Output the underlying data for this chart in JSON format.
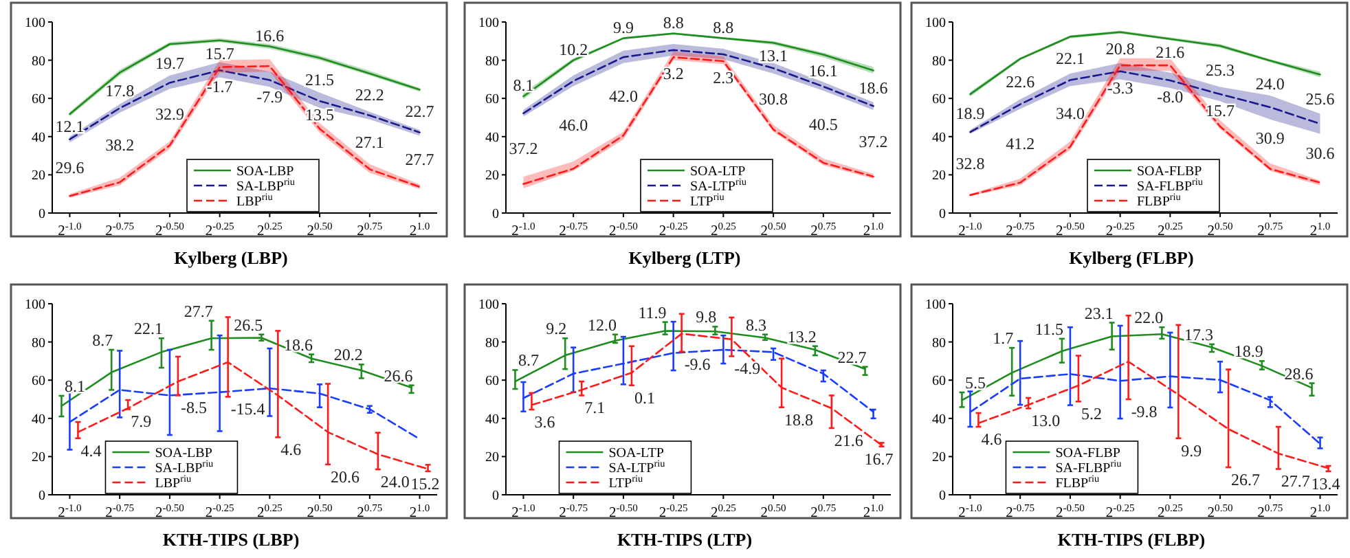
{
  "chart_data": [
    {
      "type": "line",
      "title": "Kylberg (LBP)",
      "categories": [
        "2$^{-1.0}$",
        "2$^{-0.75}$",
        "2$^{-0.50}$",
        "2$^{-0.25}$",
        "2$^{0.25}$",
        "2$^{0.50}$",
        "2$^{0.75}$",
        "2$^{1.0}$"
      ],
      "ylim": [
        0,
        100
      ],
      "yticks": [
        0,
        20,
        40,
        60,
        80,
        100
      ],
      "legend": "bottom",
      "series": [
        {
          "name": "SOA-LBP",
          "color": "#1e8c1e",
          "line_style": "solid",
          "values": [
            51.8,
            73.5,
            88.4,
            90.4,
            87.2,
            81.2,
            73,
            64.6
          ],
          "lower": [
            50.5,
            72,
            87.5,
            89.5,
            86,
            80,
            72,
            63.5
          ],
          "upper": [
            53,
            75,
            89.5,
            91.5,
            88.5,
            82.5,
            74.5,
            65.5
          ]
        },
        {
          "name": "SA-LBP$^{riu}$",
          "color": "#1a1a8c",
          "line_style": "dashed",
          "values": [
            38.6,
            54.9,
            68.2,
            74.7,
            69.6,
            58.6,
            51.1,
            42.2
          ],
          "lower": [
            37,
            52.5,
            65,
            71,
            66,
            55,
            49,
            40.5
          ],
          "upper": [
            40,
            57,
            72,
            79,
            74,
            63,
            53,
            43.5
          ]
        },
        {
          "name": "LBP$^{riu}$",
          "color": "#ff1a1a",
          "line_style": "dashed",
          "values": [
            8.9,
            16.1,
            35.4,
            76.4,
            76.9,
            44.1,
            22.9,
            13.7
          ],
          "lower": [
            8,
            14.5,
            33.5,
            73.5,
            74,
            42,
            21,
            12.5
          ],
          "upper": [
            10,
            18.5,
            37.5,
            80,
            80.5,
            47,
            25.5,
            15
          ]
        }
      ],
      "annotations": [
        "12.1",
        "29.6",
        "17.8",
        "38.2",
        "19.7",
        "32.9",
        "15.7",
        "-1.7",
        "16.6",
        "-7.9",
        "21.5",
        "13.5",
        "22.2",
        "27.1",
        "22.7",
        "27.7"
      ]
    },
    {
      "type": "line",
      "title": "Kylberg (LTP)",
      "categories": [
        "2$^{-1.0}$",
        "2$^{-0.75}$",
        "2$^{-0.50}$",
        "2$^{-0.25}$",
        "2$^{0.25}$",
        "2$^{0.50}$",
        "2$^{0.75}$",
        "2$^{1.0}$"
      ],
      "ylim": [
        0,
        100
      ],
      "yticks": [
        0,
        20,
        40,
        60,
        80,
        100
      ],
      "legend": "bottom",
      "series": [
        {
          "name": "SOA-LTP",
          "color": "#1e8c1e",
          "line_style": "solid",
          "values": [
            61.1,
            80,
            91.5,
            94,
            91.5,
            89.1,
            82.9,
            74.6
          ],
          "lower": [
            59.5,
            79,
            91,
            93.5,
            91,
            88,
            81.5,
            73
          ],
          "upper": [
            63,
            81,
            92,
            94.5,
            92,
            90,
            84,
            76.5
          ]
        },
        {
          "name": "SA-LTP$^{riu}$",
          "color": "#1a1a8c",
          "line_style": "dashed",
          "values": [
            52.2,
            69.1,
            81.6,
            85.3,
            83.1,
            75.8,
            66.2,
            56
          ],
          "lower": [
            50.5,
            66.5,
            78.5,
            82.5,
            80.5,
            73,
            64,
            54
          ],
          "upper": [
            54,
            72,
            85,
            88.5,
            86,
            78.5,
            68.5,
            58
          ]
        },
        {
          "name": "LTP$^{riu}$",
          "color": "#ff1a1a",
          "line_style": "dashed",
          "values": [
            15.2,
            23.2,
            40.6,
            81.6,
            79.5,
            43.7,
            26.3,
            19.1
          ],
          "lower": [
            13,
            22,
            38.5,
            80,
            78,
            42.5,
            25,
            18
          ],
          "upper": [
            19,
            27,
            42.5,
            84.5,
            82,
            46,
            28.5,
            20.5
          ]
        }
      ],
      "annotations": [
        "8.1",
        "37.2",
        "10.2",
        "46.0",
        "9.9",
        "42.0",
        "8.8",
        "3.2",
        "8.8",
        "2.3",
        "13.1",
        "30.8",
        "16.1",
        "40.5",
        "18.6",
        "37.2"
      ]
    },
    {
      "type": "line",
      "title": "Kylberg (FLBP)",
      "categories": [
        "2$^{-1.0}$",
        "2$^{-0.75}$",
        "2$^{-0.50}$",
        "2$^{-0.25}$",
        "2$^{0.25}$",
        "2$^{0.50}$",
        "2$^{0.75}$",
        "2$^{1.0}$"
      ],
      "ylim": [
        0,
        100
      ],
      "yticks": [
        0,
        20,
        40,
        60,
        80,
        100
      ],
      "legend": "bottom",
      "series": [
        {
          "name": "SOA-FLBP",
          "color": "#1e8c1e",
          "line_style": "solid",
          "values": [
            62.2,
            80.7,
            92.3,
            94.7,
            91.1,
            87.5,
            79.8,
            72.5
          ],
          "lower": [
            61,
            80,
            91.5,
            94,
            90.5,
            86.5,
            79,
            71
          ],
          "upper": [
            63.5,
            81.5,
            93,
            95.5,
            92,
            88.5,
            80.5,
            74
          ]
        },
        {
          "name": "SA-FLBP$^{riu}$",
          "color": "#1a1a8c",
          "line_style": "dashed",
          "values": [
            42.4,
            56.9,
            69.6,
            74.2,
            69.4,
            62.2,
            55.4,
            46.7
          ],
          "lower": [
            41.5,
            54.5,
            66.5,
            70,
            65.5,
            58.5,
            49,
            41.5
          ],
          "upper": [
            43.5,
            59.5,
            73,
            78.5,
            73.5,
            66,
            61.5,
            52
          ]
        },
        {
          "name": "FLBP$^{riu}$",
          "color": "#ff1a1a",
          "line_style": "dashed",
          "values": [
            9.4,
            15.9,
            34.7,
            77.3,
            77.3,
            45.3,
            23.1,
            15.9
          ],
          "lower": [
            9,
            14.5,
            33,
            74.5,
            74.5,
            44,
            22,
            14.5
          ],
          "upper": [
            10,
            18,
            37.5,
            81,
            81,
            48.5,
            26,
            17
          ]
        }
      ],
      "annotations": [
        "18.9",
        "32.8",
        "22.6",
        "41.2",
        "22.1",
        "34.0",
        "20.8",
        "-3.3",
        "21.6",
        "-8.0",
        "25.3",
        "15.7",
        "24.0",
        "30.9",
        "25.6",
        "30.6"
      ]
    },
    {
      "type": "line",
      "title": "KTH-TIPS (LBP)",
      "categories": [
        "2$^{-1.0}$",
        "2$^{-0.75}$",
        "2$^{-0.50}$",
        "2$^{-0.25}$",
        "2$^{0.25}$",
        "2$^{0.50}$",
        "2$^{0.75}$",
        "2$^{1.0}$"
      ],
      "ylim": [
        0,
        100
      ],
      "yticks": [
        0,
        20,
        40,
        60,
        80,
        100
      ],
      "legend": "bottom left",
      "series": [
        {
          "name": "SOA-LBP",
          "color": "#1e8c1e",
          "line_style": "solid",
          "values": [
            46.5,
            64.1,
            74.7,
            81.9,
            82.2,
            71.3,
            65.1,
            56.1
          ],
          "errors": [
            [
              41,
              51.8
            ],
            [
              54.9,
              75.9
            ],
            [
              66.5,
              81.9
            ],
            [
              75.9,
              91.1
            ],
            [
              80.7,
              83.9
            ],
            [
              69.4,
              73.5
            ],
            [
              61,
              68.2
            ],
            [
              53.3,
              57.3
            ]
          ]
        },
        {
          "name": "SA-LBP$^{riu}$",
          "color": "#1a3cff",
          "line_style": "dashed",
          "values": [
            38.1,
            54.9,
            52,
            53.7,
            55.7,
            53,
            44.8,
            29.2
          ],
          "errors": [
            [
              23.6,
              53.7
            ],
            [
              40.5,
              75.4
            ],
            [
              31.3,
              75.9
            ],
            [
              33.3,
              83.4
            ],
            [
              41.2,
              76.6
            ],
            [
              45.8,
              57.8
            ],
            [
              42.9,
              46.5
            ],
            null
          ]
        },
        {
          "name": "LBP$^{riu}$",
          "color": "#ff1a1a",
          "line_style": "dashed",
          "values": [
            32.8,
            45.3,
            59.3,
            69.4,
            52,
            32.8,
            21.2,
            13.5
          ],
          "errors": [
            [
              29.6,
              38.1
            ],
            [
              44.8,
              49.6
            ],
            [
              52,
              72.3
            ],
            [
              51.3,
              93
            ],
            [
              30.1,
              85.8
            ],
            [
              15.9,
              58.1
            ],
            [
              13.3,
              32.5
            ],
            [
              12.3,
              15.7
            ]
          ]
        }
      ],
      "annotations": [
        "8.1",
        "4.4",
        "8.7",
        "7.9",
        "22.1",
        "-8.5",
        "27.7",
        "-15.4",
        "26.5",
        "4.6",
        "18.6",
        "20.6",
        "20.2",
        "24.0",
        "26.6",
        "15.2"
      ]
    },
    {
      "type": "line",
      "title": "KTH-TIPS (LTP)",
      "categories": [
        "2$^{-1.0}$",
        "2$^{-0.75}$",
        "2$^{-0.50}$",
        "2$^{-0.25}$",
        "2$^{0.25}$",
        "2$^{0.50}$",
        "2$^{0.75}$",
        "2$^{1.0}$"
      ],
      "ylim": [
        0,
        100
      ],
      "yticks": [
        0,
        20,
        40,
        60,
        80,
        100
      ],
      "legend": "bottom left",
      "series": [
        {
          "name": "SOA-LTP",
          "color": "#1e8c1e",
          "line_style": "solid",
          "values": [
            59.3,
            73,
            80.7,
            85.8,
            85.5,
            82.2,
            75.9,
            65.8
          ],
          "errors": [
            [
              55.4,
              65.3
            ],
            [
              65.8,
              81.9
            ],
            [
              79.5,
              83.9
            ],
            [
              83.9,
              90.4
            ],
            [
              83.9,
              88
            ],
            [
              81,
              83.9
            ],
            [
              73,
              77.8
            ],
            [
              62.7,
              67
            ]
          ]
        },
        {
          "name": "SA-LTP$^{riu}$",
          "color": "#1a3cff",
          "line_style": "dashed",
          "values": [
            50.6,
            63.4,
            68.7,
            74.2,
            75.9,
            74.7,
            63.4,
            43.4
          ],
          "errors": [
            [
              43.6,
              59
            ],
            [
              53.7,
              77.1
            ],
            [
              57.8,
              82.7
            ],
            [
              65.1,
              90.6
            ],
            [
              68.7,
              83.4
            ],
            [
              70.6,
              76.6
            ],
            [
              59.3,
              65.1
            ],
            [
              40,
              44.6
            ]
          ]
        },
        {
          "name": "LTP$^{riu}$",
          "color": "#ff1a1a",
          "line_style": "dashed",
          "values": [
            47,
            54.9,
            63.9,
            84.3,
            81.4,
            56.1,
            45.3,
            26
          ],
          "errors": [
            [
              44.6,
              53.3
            ],
            [
              52,
              59.3
            ],
            [
              57.3,
              77.8
            ],
            [
              74.9,
              94.7
            ],
            [
              72.5,
              92.8
            ],
            [
              45.8,
              71.3
            ],
            [
              34.9,
              52
            ],
            [
              25.3,
              27.2
            ]
          ]
        }
      ],
      "annotations": [
        "8.7",
        "3.6",
        "9.2",
        "7.1",
        "12.0",
        "0.1",
        "11.9",
        "-9.6",
        "9.8",
        "-4.9",
        "8.3",
        "18.8",
        "13.2",
        "21.6",
        "22.7",
        "16.7"
      ]
    },
    {
      "type": "line",
      "title": "KTH-TIPS (FLBP)",
      "categories": [
        "2$^{-1.0}$",
        "2$^{-0.75}$",
        "2$^{-0.50}$",
        "2$^{-0.25}$",
        "2$^{0.25}$",
        "2$^{0.50}$",
        "2$^{0.75}$",
        "2$^{1.0}$"
      ],
      "ylim": [
        0,
        100
      ],
      "yticks": [
        0,
        20,
        40,
        60,
        80,
        100
      ],
      "legend": "bottom left",
      "series": [
        {
          "name": "SOA-FLBP",
          "color": "#1e8c1e",
          "line_style": "solid",
          "values": [
            49.5,
            63.9,
            75.2,
            82.9,
            84.1,
            77.2,
            67.5,
            56
          ],
          "errors": [
            [
              45.9,
              53.6
            ],
            [
              51.9,
              76.9
            ],
            [
              69.2,
              81.7
            ],
            [
              76,
              90.1
            ],
            [
              81.7,
              87.7
            ],
            [
              74.8,
              78.8
            ],
            [
              65.6,
              70
            ],
            [
              51.9,
              58.4
            ]
          ]
        },
        {
          "name": "SA-FLBP$^{riu}$",
          "color": "#1a3cff",
          "line_style": "dashed",
          "values": [
            43.3,
            60.8,
            63.2,
            59.6,
            62,
            60.1,
            49.5,
            26.7
          ],
          "errors": [
            [
              35.6,
              54.1
            ],
            [
              47.1,
              80.5
            ],
            [
              46.9,
              87.7
            ],
            [
              39.9,
              88.5
            ],
            [
              45.7,
              84.9
            ],
            [
              53.6,
              69.7
            ],
            [
              45.9,
              51.2
            ],
            [
              24.3,
              30
            ]
          ]
        },
        {
          "name": "FLBP$^{riu}$",
          "color": "#ff1a1a",
          "line_style": "dashed",
          "values": [
            37.5,
            47.1,
            57.2,
            69.7,
            52.4,
            34.4,
            21.6,
            13.9
          ],
          "errors": [
            [
              35.6,
              42.8
            ],
            [
              45.2,
              50.7
            ],
            [
              48.8,
              72.8
            ],
            [
              50,
              93.8
            ],
            [
              29.6,
              88.9
            ],
            [
              14.4,
              65.6
            ],
            [
              13.5,
              35.6
            ],
            [
              12.3,
              15.1
            ]
          ]
        }
      ],
      "annotations": [
        "5.5",
        "4.6",
        "1.7",
        "13.0",
        "11.5",
        "5.2",
        "23.1",
        "-9.8",
        "22.0",
        "9.9",
        "17.3",
        "26.7",
        "18.9",
        "27.7",
        "28.6",
        "13.4"
      ]
    }
  ]
}
